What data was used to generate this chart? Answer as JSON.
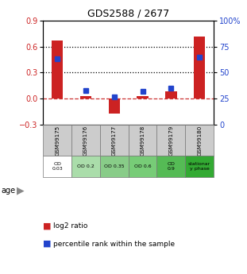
{
  "title": "GDS2588 / 2677",
  "samples": [
    "GSM99175",
    "GSM99176",
    "GSM99177",
    "GSM99178",
    "GSM99179",
    "GSM99180"
  ],
  "log2_ratio": [
    0.67,
    0.03,
    -0.17,
    0.03,
    0.08,
    0.72
  ],
  "percentile_rank": [
    63,
    33,
    27,
    32,
    35,
    65
  ],
  "age_labels": [
    "OD\n0.03",
    "OD 0.2",
    "OD 0.35",
    "OD 0.6",
    "OD\n0.9",
    "stationar\ny phase"
  ],
  "age_colors": [
    "#ffffff",
    "#aaddaa",
    "#88cc88",
    "#77cc77",
    "#55bb55",
    "#33aa33"
  ],
  "bar_color": "#cc2222",
  "dot_color": "#2244cc",
  "ylim_left": [
    -0.3,
    0.9
  ],
  "ylim_right": [
    0,
    100
  ],
  "yticks_left": [
    -0.3,
    0.0,
    0.3,
    0.6,
    0.9
  ],
  "yticks_right": [
    0,
    25,
    50,
    75,
    100
  ],
  "background_color": "#ffffff"
}
